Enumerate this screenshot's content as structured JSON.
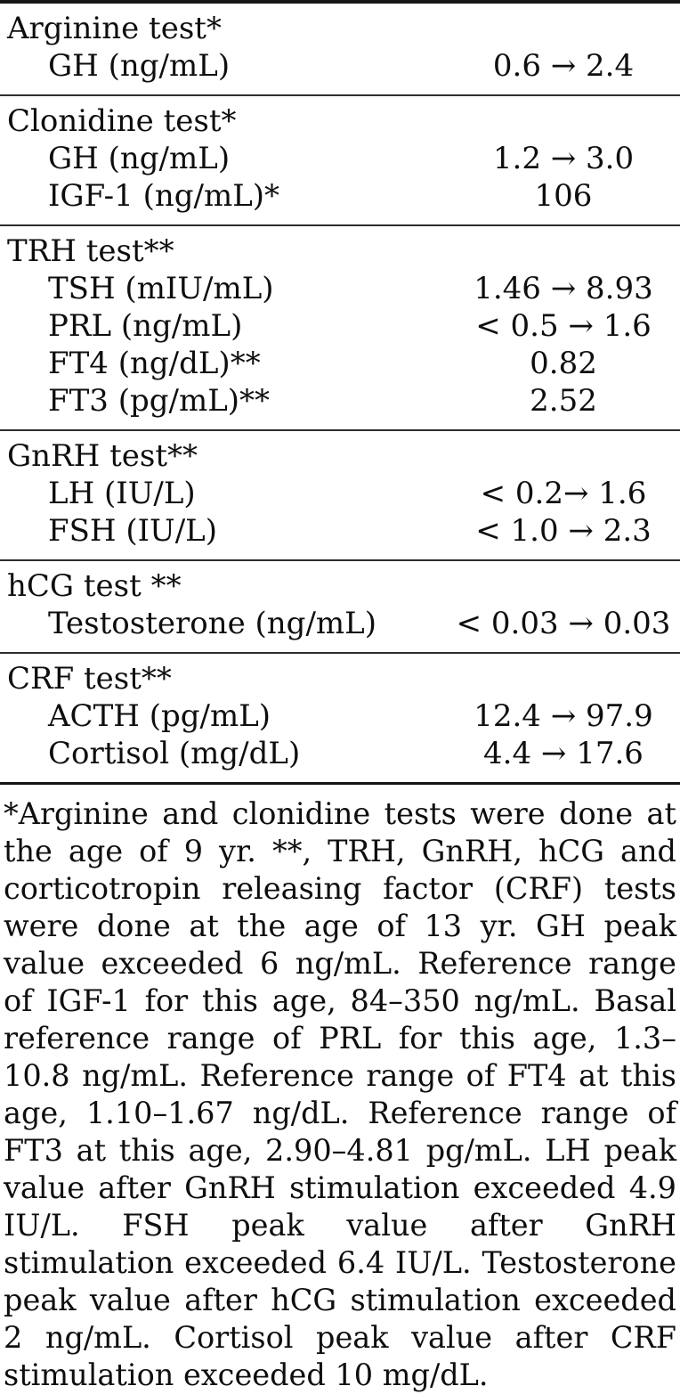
{
  "colors": {
    "background": "#ffffff",
    "text": "#0e0e0e",
    "rule": "#151515"
  },
  "table": {
    "sections": [
      {
        "header": "Arginine test*",
        "rows": [
          {
            "label": "GH (ng/mL)",
            "value": "0.6 → 2.4"
          }
        ]
      },
      {
        "header": "Clonidine test*",
        "rows": [
          {
            "label": "GH (ng/mL)",
            "value": "1.2 → 3.0"
          },
          {
            "label": "IGF-1 (ng/mL)*",
            "value": "106"
          }
        ]
      },
      {
        "header": "TRH test**",
        "rows": [
          {
            "label": "TSH (mIU/mL)",
            "value": "1.46 → 8.93"
          },
          {
            "label": "PRL (ng/mL)",
            "value": "< 0.5 → 1.6"
          },
          {
            "label": "FT4 (ng/dL)**",
            "value": "0.82"
          },
          {
            "label": "FT3 (pg/mL)**",
            "value": "2.52"
          }
        ]
      },
      {
        "header": "GnRH test**",
        "rows": [
          {
            "label": "LH (IU/L)",
            "value": "< 0.2→ 1.6"
          },
          {
            "label": "FSH (IU/L)",
            "value": "< 1.0 → 2.3"
          }
        ]
      },
      {
        "header": "hCG test **",
        "rows": [
          {
            "label": "Testosterone (ng/mL)",
            "value": "< 0.03 → 0.03"
          }
        ]
      },
      {
        "header": "CRF test**",
        "rows": [
          {
            "label": "ACTH (pg/mL)",
            "value": "12.4 → 97.9"
          },
          {
            "label": "Cortisol (mg/dL)",
            "value": "4.4 → 17.6"
          }
        ]
      }
    ],
    "footnote": "*Arginine and clonidine tests were done at the age of 9 yr. **, TRH, GnRH, hCG and corticotropin releasing factor (CRF) tests were done at the age of 13 yr. GH peak value exceeded 6 ng/mL. Reference range of IGF-1 for this age, 84–350 ng/mL. Basal reference range of PRL for this age, 1.3–10.8 ng/mL. Reference range of FT4 at this age, 1.10–1.67 ng/dL. Reference range of FT3 at this age, 2.90–4.81 pg/mL. LH peak value after GnRH stimulation exceeded 4.9 IU/L. FSH peak value after GnRH stimulation exceeded 6.4 IU/L. Testosterone peak value after hCG stimulation exceeded 2 ng/mL. Cortisol peak value after CRF stimulation exceeded 10 mg/dL."
  }
}
